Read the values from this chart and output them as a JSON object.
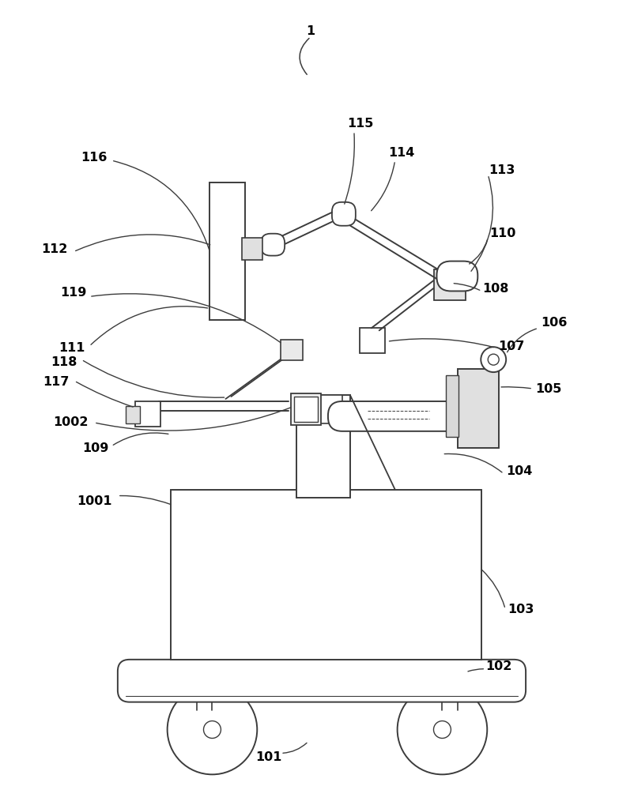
{
  "bg_color": "#ffffff",
  "lc": "#3c3c3c",
  "lw": 1.4,
  "fs": 11.5,
  "fig_w": 8.02,
  "fig_h": 10.0,
  "dpi": 100
}
